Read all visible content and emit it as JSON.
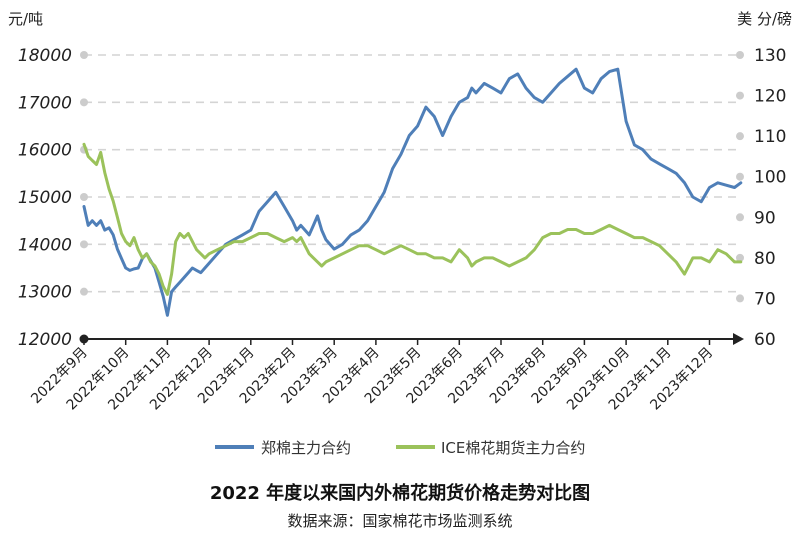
{
  "chart_data": {
    "type": "line",
    "title": "2022 年度以来国内外棉花期货价格走势对比图",
    "source": "数据来源：国家棉花市场监测系统",
    "left_axis": {
      "unit": "元/吨",
      "ylim": [
        12000,
        18000
      ],
      "ticks": [
        "18000",
        "17000",
        "16000",
        "15000",
        "14000",
        "13000",
        "12000"
      ]
    },
    "right_axis": {
      "unit": "美 分/磅",
      "ylim": [
        60,
        130
      ],
      "ticks": [
        "130",
        "120",
        "110",
        "100",
        "90",
        "80",
        "70",
        "60"
      ]
    },
    "x_labels": [
      "2022年9月",
      "2022年10月",
      "2022年11月",
      "2022年12月",
      "2023年1月",
      "2023年2月",
      "2023年3月",
      "2023年4月",
      "2023年5月",
      "2023年6月",
      "2023年7月",
      "2023年8月",
      "2023年9月",
      "2023年10月",
      "2023年11月",
      "2023年12月"
    ],
    "grid": "horizontal-dashed",
    "legend_position": "bottom",
    "colors": {
      "zheng": "#4f7fb8",
      "ice": "#9bc25b",
      "grid": "#d4d4d4",
      "axis": "#222222"
    },
    "series": [
      {
        "name": "郑棉主力合约",
        "axis": "left",
        "x": [
          0,
          0.1,
          0.2,
          0.3,
          0.4,
          0.5,
          0.6,
          0.7,
          0.8,
          0.9,
          1.0,
          1.1,
          1.2,
          1.3,
          1.4,
          1.5,
          1.6,
          1.7,
          1.8,
          1.9,
          2.0,
          2.1,
          2.2,
          2.3,
          2.4,
          2.5,
          2.6,
          2.7,
          2.8,
          2.9,
          3.0,
          3.2,
          3.4,
          3.6,
          3.8,
          4.0,
          4.2,
          4.4,
          4.6,
          4.8,
          5.0,
          5.1,
          5.2,
          5.3,
          5.4,
          5.5,
          5.6,
          5.7,
          5.8,
          6.0,
          6.2,
          6.4,
          6.6,
          6.8,
          7.0,
          7.2,
          7.4,
          7.6,
          7.8,
          8.0,
          8.2,
          8.4,
          8.6,
          8.8,
          9.0,
          9.2,
          9.3,
          9.4,
          9.6,
          9.8,
          10.0,
          10.2,
          10.4,
          10.6,
          10.8,
          11.0,
          11.2,
          11.4,
          11.6,
          11.8,
          12.0,
          12.2,
          12.4,
          12.6,
          12.8,
          13.0,
          13.2,
          13.4,
          13.6,
          13.8,
          14.0,
          14.2,
          14.4,
          14.6,
          14.8,
          15.0,
          15.2,
          15.4,
          15.6,
          15.75
        ],
        "y": [
          14800,
          14400,
          14500,
          14400,
          14500,
          14300,
          14350,
          14200,
          13900,
          13700,
          13500,
          13450,
          13480,
          13500,
          13700,
          13800,
          13650,
          13500,
          13200,
          12900,
          12500,
          13000,
          13100,
          13200,
          13300,
          13400,
          13500,
          13450,
          13400,
          13500,
          13600,
          13800,
          14000,
          14100,
          14200,
          14300,
          14700,
          14900,
          15100,
          14800,
          14500,
          14300,
          14400,
          14300,
          14200,
          14400,
          14600,
          14300,
          14100,
          13900,
          14000,
          14200,
          14300,
          14500,
          14800,
          15100,
          15600,
          15900,
          16300,
          16500,
          16900,
          16700,
          16300,
          16700,
          17000,
          17100,
          17300,
          17200,
          17400,
          17300,
          17200,
          17500,
          17600,
          17300,
          17100,
          17000,
          17200,
          17400,
          17550,
          17700,
          17300,
          17200,
          17500,
          17650,
          17700,
          16600,
          16100,
          16000,
          15800,
          15700,
          15600,
          15500,
          15300,
          15000,
          14900,
          15200,
          15300,
          15250,
          15200,
          15300
        ]
      },
      {
        "name": "ICE棉花期货主力合约",
        "axis": "right",
        "x": [
          0,
          0.1,
          0.2,
          0.3,
          0.4,
          0.5,
          0.6,
          0.7,
          0.8,
          0.9,
          1.0,
          1.1,
          1.2,
          1.3,
          1.4,
          1.5,
          1.6,
          1.7,
          1.8,
          1.9,
          2.0,
          2.1,
          2.2,
          2.3,
          2.4,
          2.5,
          2.6,
          2.7,
          2.8,
          2.9,
          3.0,
          3.2,
          3.4,
          3.6,
          3.8,
          4.0,
          4.2,
          4.4,
          4.6,
          4.8,
          5.0,
          5.1,
          5.2,
          5.3,
          5.4,
          5.5,
          5.6,
          5.7,
          5.8,
          6.0,
          6.2,
          6.4,
          6.6,
          6.8,
          7.0,
          7.2,
          7.4,
          7.6,
          7.8,
          8.0,
          8.2,
          8.4,
          8.6,
          8.8,
          9.0,
          9.2,
          9.3,
          9.4,
          9.6,
          9.8,
          10.0,
          10.2,
          10.4,
          10.6,
          10.8,
          11.0,
          11.2,
          11.4,
          11.6,
          11.8,
          12.0,
          12.2,
          12.4,
          12.6,
          12.8,
          13.0,
          13.2,
          13.4,
          13.6,
          13.8,
          14.0,
          14.2,
          14.4,
          14.6,
          14.8,
          15.0,
          15.2,
          15.4,
          15.6,
          15.75
        ],
        "y": [
          108,
          105,
          104,
          103,
          106,
          101,
          97,
          94,
          90,
          86,
          84,
          83,
          85,
          82,
          80,
          81,
          79,
          78,
          76,
          73,
          71,
          76,
          84,
          86,
          85,
          86,
          84,
          82,
          81,
          80,
          81,
          82,
          83,
          84,
          84,
          85,
          86,
          86,
          85,
          84,
          85,
          84,
          85,
          83,
          81,
          80,
          79,
          78,
          79,
          80,
          81,
          82,
          83,
          83,
          82,
          81,
          82,
          83,
          82,
          81,
          81,
          80,
          80,
          79,
          82,
          80,
          78,
          79,
          80,
          80,
          79,
          78,
          79,
          80,
          82,
          85,
          86,
          86,
          87,
          87,
          86,
          86,
          87,
          88,
          87,
          86,
          85,
          85,
          84,
          83,
          81,
          79,
          76,
          80,
          80,
          79,
          82,
          81,
          79,
          79
        ]
      }
    ]
  }
}
